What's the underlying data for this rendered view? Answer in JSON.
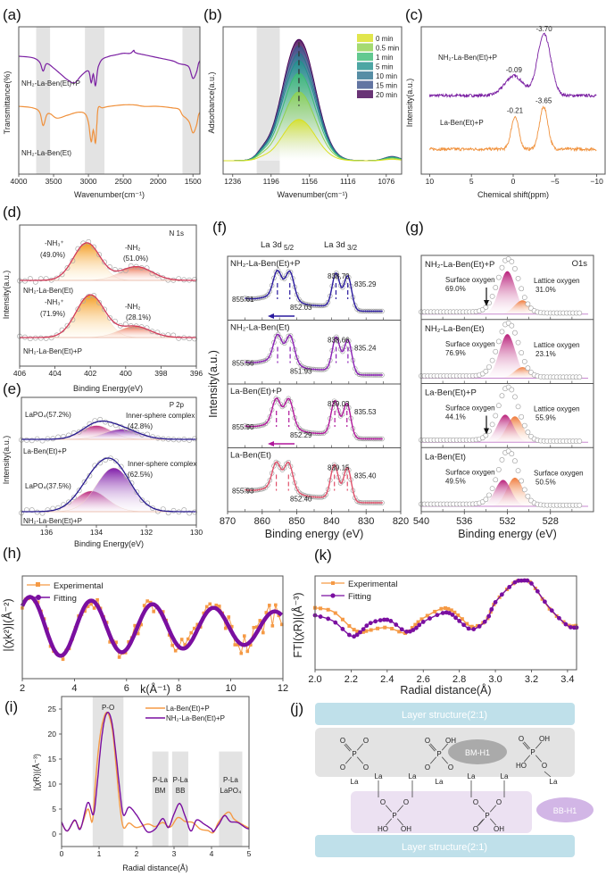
{
  "figure": {
    "panel_labels": [
      "(a)",
      "(b)",
      "(c)",
      "(d)",
      "(e)",
      "(f)",
      "(g)",
      "(h)",
      "(k)",
      "(i)",
      "(j)"
    ]
  },
  "chart_data": [
    {
      "id": "a",
      "type": "line",
      "title": "",
      "xlabel": "Wavenumber(cm⁻¹)",
      "ylabel": "Transmittance(%)",
      "xlim": [
        4000,
        1400
      ],
      "xticks": [
        "4000",
        "3500",
        "3000",
        "2500",
        "2000",
        "1500"
      ],
      "xtick_values": [
        4000,
        3500,
        3000,
        2500,
        2000,
        1500
      ],
      "shaded_regions": [
        [
          3750,
          3550
        ],
        [
          3050,
          2770
        ],
        [
          1650,
          1400
        ]
      ],
      "series": [
        {
          "name": "NH₂-La-Ben(Et)+P",
          "color": "#7a1fa2",
          "x": [
            4000,
            3800,
            3700,
            3650,
            3600,
            3500,
            3400,
            3300,
            3200,
            3100,
            3000,
            2960,
            2930,
            2900,
            2870,
            2850,
            2800,
            2700,
            2600,
            2500,
            2400,
            2350,
            2340,
            2300,
            2200,
            2000,
            1800,
            1700,
            1600,
            1550,
            1500,
            1450,
            1420,
            1400
          ],
          "y": [
            0.8,
            0.79,
            0.76,
            0.7,
            0.75,
            0.72,
            0.68,
            0.64,
            0.62,
            0.67,
            0.7,
            0.62,
            0.68,
            0.6,
            0.7,
            0.74,
            0.78,
            0.8,
            0.81,
            0.82,
            0.82,
            0.84,
            0.83,
            0.82,
            0.81,
            0.79,
            0.77,
            0.75,
            0.74,
            0.72,
            0.65,
            0.69,
            0.75,
            0.77
          ]
        },
        {
          "name": "NH₂-La-Ben(Et)",
          "color": "#f0913c",
          "x": [
            4000,
            3800,
            3700,
            3650,
            3600,
            3550,
            3450,
            3300,
            3150,
            3050,
            3000,
            2960,
            2930,
            2900,
            2880,
            2860,
            2800,
            2700,
            2500,
            2340,
            2200,
            2000,
            1800,
            1700,
            1650,
            1600,
            1550,
            1500,
            1450,
            1420,
            1400
          ],
          "y": [
            0.46,
            0.45,
            0.42,
            0.33,
            0.4,
            0.41,
            0.38,
            0.4,
            0.42,
            0.41,
            0.35,
            0.22,
            0.3,
            0.21,
            0.33,
            0.45,
            0.45,
            0.46,
            0.47,
            0.47,
            0.46,
            0.46,
            0.45,
            0.44,
            0.4,
            0.38,
            0.35,
            0.28,
            0.33,
            0.4,
            0.42
          ]
        }
      ]
    },
    {
      "id": "b",
      "type": "area",
      "xlabel": "Wavenumber(cm⁻¹)",
      "ylabel": "Adsorbance(a.u.)",
      "xlim": [
        1246,
        1060
      ],
      "xticks": [
        "1236",
        "1196",
        "1156",
        "1116",
        "1076"
      ],
      "xtick_values": [
        1236,
        1196,
        1156,
        1116,
        1076
      ],
      "shaded_regions": [
        [
          1211,
          1187
        ]
      ],
      "peak_center": 1167,
      "legend_position": "top-right",
      "series": [
        {
          "name": "0 min",
          "color": "#d9e021",
          "peak": 0.33
        },
        {
          "name": "0.5 min",
          "color": "#8fd14f",
          "peak": 0.55
        },
        {
          "name": "1 min",
          "color": "#3cbb75",
          "peak": 0.7
        },
        {
          "name": "5 min",
          "color": "#21908d",
          "peak": 0.8
        },
        {
          "name": "10 min",
          "color": "#2c728e",
          "peak": 0.86
        },
        {
          "name": "15 min",
          "color": "#3b528b",
          "peak": 0.92
        },
        {
          "name": "20 min",
          "color": "#440154",
          "peak": 0.97
        }
      ]
    },
    {
      "id": "c",
      "type": "line",
      "xlabel": "Chemical shift(ppm)",
      "ylabel": "Intensity(a.u.)",
      "xlim": [
        11,
        -11
      ],
      "xticks": [
        "10",
        "5",
        "0",
        "−5",
        "−10"
      ],
      "xtick_values": [
        10,
        5,
        0,
        -5,
        -10
      ],
      "series": [
        {
          "name": "NH₂-La-Ben(Et)+P",
          "color": "#7a1fa2",
          "peaks": [
            {
              "pos": -0.09,
              "label": "-0.09",
              "h": 0.2,
              "w": 1.1
            },
            {
              "pos": -3.7,
              "label": "-3.70",
              "h": 0.62,
              "w": 0.8
            }
          ]
        },
        {
          "name": "La-Ben(Et)+P",
          "color": "#f0913c",
          "peaks": [
            {
              "pos": -0.21,
              "label": "-0.21",
              "h": 0.33,
              "w": 0.45
            },
            {
              "pos": -3.65,
              "label": "-3.65",
              "h": 0.43,
              "w": 0.5
            }
          ]
        }
      ]
    },
    {
      "id": "d",
      "type": "area",
      "xlabel": "Binding Energy(eV)",
      "ylabel": "Intensity(a.u.)",
      "corner_label": "N 1s",
      "xlim": [
        406,
        396
      ],
      "xticks": [
        "406",
        "404",
        "402",
        "400",
        "398",
        "396"
      ],
      "xtick_values": [
        406,
        404,
        402,
        400,
        398,
        396
      ],
      "series": [
        {
          "name": "NH₂-La-Ben(Et)",
          "components": [
            {
              "label": "-NH₃⁺",
              "pct": "(49.0%)",
              "center": 402.2,
              "h": 0.6,
              "w": 0.75
            },
            {
              "label": "-NH₂",
              "pct": "(51.0%)",
              "center": 399.4,
              "h": 0.22,
              "w": 0.9
            }
          ]
        },
        {
          "name": "NH₂-La-Ben(Et)+P",
          "components": [
            {
              "label": "-NH₃⁺",
              "pct": "(71.9%)",
              "center": 402.0,
              "h": 0.68,
              "w": 0.8
            },
            {
              "label": "-NH₂",
              "pct": "(28.1%)",
              "center": 399.5,
              "h": 0.18,
              "w": 0.9
            }
          ]
        }
      ]
    },
    {
      "id": "e",
      "type": "area",
      "xlabel": "Binding Energy(eV)",
      "ylabel": "Intensity(a.u.)",
      "corner_label": "P 2p",
      "xlim": [
        137,
        130
      ],
      "xticks": [
        "136",
        "134",
        "132",
        "130"
      ],
      "xtick_values": [
        136,
        134,
        132,
        130
      ],
      "series": [
        {
          "name": "La-Ben(Et)+P",
          "components": [
            {
              "label": "LaPO₄(57.2%)",
              "center": 134.0,
              "h": 0.22,
              "w": 0.6
            },
            {
              "label": "Inner-sphere complex (42.8%)",
              "center": 133.0,
              "h": 0.16,
              "w": 0.7
            }
          ]
        },
        {
          "name": "NH₂-La-Ben(Et)+P",
          "components": [
            {
              "label": "LaPO₄(37.5%)",
              "center": 134.2,
              "h": 0.33,
              "w": 0.65
            },
            {
              "label": "Inner-sphere complex (62.5%)",
              "center": 133.3,
              "h": 0.7,
              "w": 0.7
            }
          ]
        }
      ]
    },
    {
      "id": "f",
      "type": "line",
      "xlabel": "Binding energy (eV)",
      "ylabel": "Intensity(a.u.)",
      "xlim": [
        870,
        820
      ],
      "xticks": [
        "870",
        "860",
        "850",
        "840",
        "830",
        "820"
      ],
      "xtick_values": [
        870,
        860,
        850,
        840,
        830,
        820
      ],
      "header_labels": [
        "La 3d₅₂",
        "La 3d₃₂"
      ],
      "series": [
        {
          "name": "NH₂-La-Ben(Et)+P",
          "color": "#2a1a9e",
          "peaks": [
            855.61,
            852.03,
            838.7,
            835.29
          ],
          "labels": [
            "855.61",
            "852.03",
            "838.70",
            "835.29"
          ],
          "arrow": true
        },
        {
          "name": "NH₂-La-Ben(Et)",
          "color": "#8a1fb5",
          "peaks": [
            855.56,
            851.93,
            838.66,
            835.24
          ],
          "labels": [
            "855.56",
            "851.93",
            "838.66",
            "835.24"
          ],
          "arrow": false
        },
        {
          "name": "La-Ben(Et)+P",
          "color": "#b0179b",
          "peaks": [
            855.9,
            852.29,
            839.03,
            835.53
          ],
          "labels": [
            "855.90",
            "852.29",
            "839.03",
            "835.53"
          ],
          "arrow": true
        },
        {
          "name": "La-Ben(Et)",
          "color": "#e0506a",
          "peaks": [
            855.93,
            852.4,
            839.15,
            835.4
          ],
          "labels": [
            "855.93",
            "852.40",
            "839.15",
            "835.40"
          ],
          "arrow": false
        }
      ]
    },
    {
      "id": "g",
      "type": "area",
      "xlabel": "Binding energy (eV)",
      "ylabel": "",
      "corner_label": "O1s",
      "xlim": [
        540,
        524
      ],
      "xticks": [
        "540",
        "536",
        "532",
        "528"
      ],
      "xtick_values": [
        540,
        536,
        532,
        528
      ],
      "series": [
        {
          "name": "NH₂-La-Ben(Et)+P",
          "left_label": "Surface oxygen",
          "left_pct": "69.0%",
          "right_label": "Lattice oxygen",
          "right_pct": "31.0%",
          "arrow": true,
          "c1": 532.0,
          "h1": 0.78,
          "c2": 530.6,
          "h2": 0.25
        },
        {
          "name": "NH₂-La-Ben(Et)",
          "left_label": "Surface oxygen",
          "left_pct": "76.9%",
          "right_label": "Lattice oxygen",
          "right_pct": "23.1%",
          "arrow": false,
          "c1": 532.0,
          "h1": 0.8,
          "c2": 530.6,
          "h2": 0.2
        },
        {
          "name": "La-Ben(Et)+P",
          "left_label": "Surface oxygen",
          "left_pct": "44.1%",
          "right_label": "Lattice oxygen",
          "right_pct": "55.9%",
          "arrow": true,
          "c1": 532.2,
          "h1": 0.5,
          "c2": 531.3,
          "h2": 0.47
        },
        {
          "name": "La-Ben(Et)",
          "left_label": "Surface oxygen",
          "left_pct": "49.5%",
          "right_label": "Surface oxygen",
          "right_pct": "50.5%",
          "arrow": false,
          "c1": 532.4,
          "h1": 0.48,
          "c2": 531.3,
          "h2": 0.52
        }
      ]
    },
    {
      "id": "h",
      "type": "line",
      "xlabel": "k(Å⁻¹)",
      "ylabel": "|(χk²)|(Å⁻²)",
      "xlim": [
        2,
        12
      ],
      "xticks": [
        "2",
        "4",
        "6",
        "8",
        "10",
        "12"
      ],
      "xtick_values": [
        2,
        4,
        6,
        8,
        10,
        12
      ],
      "legend_position": "top-left",
      "series": [
        {
          "name": "Experimental",
          "color": "#f59a45"
        },
        {
          "name": "Fitting",
          "color": "#7a0fa0"
        }
      ]
    },
    {
      "id": "k",
      "type": "line",
      "xlabel": "Radial distance(Å)",
      "ylabel": "FT|(χR)|(Å⁻³)",
      "xlim": [
        2.0,
        3.45
      ],
      "xticks": [
        "2.0",
        "2.2",
        "2.4",
        "2.6",
        "2.8",
        "3.0",
        "3.2",
        "3.4"
      ],
      "xtick_values": [
        2.0,
        2.2,
        2.4,
        2.6,
        2.8,
        3.0,
        3.2,
        3.4
      ],
      "legend_position": "top-left",
      "series": [
        {
          "name": "Experimental",
          "color": "#f59a45",
          "x": [
            2.0,
            2.1,
            2.2,
            2.25,
            2.3,
            2.4,
            2.5,
            2.55,
            2.6,
            2.7,
            2.75,
            2.8,
            2.87,
            2.95,
            3.0,
            3.1,
            3.15,
            3.2,
            3.3,
            3.4,
            3.45
          ],
          "y": [
            0.66,
            0.62,
            0.45,
            0.4,
            0.42,
            0.45,
            0.39,
            0.47,
            0.55,
            0.65,
            0.64,
            0.57,
            0.46,
            0.53,
            0.72,
            0.92,
            0.95,
            0.92,
            0.65,
            0.48,
            0.47
          ]
        },
        {
          "name": "Fitting",
          "color": "#7a0fa0",
          "x": [
            2.0,
            2.1,
            2.2,
            2.25,
            2.3,
            2.37,
            2.42,
            2.5,
            2.55,
            2.6,
            2.7,
            2.75,
            2.8,
            2.87,
            2.95,
            3.0,
            3.1,
            3.15,
            3.2,
            3.3,
            3.4,
            3.45
          ],
          "y": [
            0.58,
            0.52,
            0.36,
            0.4,
            0.49,
            0.53,
            0.52,
            0.41,
            0.43,
            0.51,
            0.6,
            0.6,
            0.52,
            0.43,
            0.53,
            0.72,
            0.92,
            0.95,
            0.92,
            0.66,
            0.47,
            0.45
          ]
        }
      ]
    },
    {
      "id": "i",
      "type": "line",
      "xlabel": "Radial distance(Å)",
      "ylabel": "|(χR)|(Å⁻³)",
      "xlim": [
        0,
        5
      ],
      "ylim": [
        -2.5,
        27.5
      ],
      "xticks": [
        "0",
        "1",
        "2",
        "3",
        "4",
        "5"
      ],
      "xtick_values": [
        0,
        1,
        2,
        3,
        4,
        5
      ],
      "yticks": [
        "0",
        "5",
        "10",
        "15",
        "20",
        "25"
      ],
      "ytick_values": [
        0,
        5,
        10,
        15,
        20,
        25
      ],
      "legend_position": "top-right",
      "shaded_regions": [
        {
          "x": [
            0.83,
            1.65
          ],
          "top": 27.5,
          "label": "P-O"
        },
        {
          "x": [
            2.42,
            2.85
          ],
          "top": 16.5,
          "label": "P-La BM"
        },
        {
          "x": [
            2.95,
            3.38
          ],
          "top": 16.5,
          "label": "P-La BB"
        },
        {
          "x": [
            4.2,
            4.82
          ],
          "top": 16.5,
          "label": "P-La LaPO₄"
        }
      ],
      "series": [
        {
          "name": "La-Ben(Et)+P",
          "color": "#f59a45",
          "x": [
            0,
            0.15,
            0.35,
            0.5,
            0.7,
            0.82,
            0.9,
            1.0,
            1.1,
            1.22,
            1.35,
            1.45,
            1.55,
            1.65,
            1.8,
            2.0,
            2.3,
            2.5,
            2.7,
            2.9,
            3.1,
            3.3,
            3.5,
            3.7,
            3.9,
            4.05,
            4.2,
            4.45,
            4.6,
            4.8,
            5.0
          ],
          "y": [
            2.3,
            0.6,
            2.7,
            1.2,
            5.0,
            2.5,
            10.0,
            18.0,
            22.5,
            24.3,
            21.0,
            14.0,
            6.0,
            1.3,
            2.2,
            1.3,
            2.0,
            1.5,
            2.3,
            1.4,
            3.3,
            2.5,
            2.3,
            1.0,
            0.7,
            0.3,
            2.5,
            4.4,
            3.0,
            2.0,
            1.2
          ]
        },
        {
          "name": "NH₂-La-Ben(Et)+P",
          "color": "#7a0fa0",
          "x": [
            0,
            0.15,
            0.35,
            0.5,
            0.7,
            0.85,
            0.95,
            1.05,
            1.15,
            1.25,
            1.35,
            1.45,
            1.55,
            1.65,
            1.8,
            2.0,
            2.15,
            2.3,
            2.5,
            2.7,
            2.85,
            3.0,
            3.15,
            3.3,
            3.45,
            3.6,
            3.8,
            4.0,
            4.05,
            4.2,
            4.35,
            4.5,
            4.7,
            4.9,
            5.0
          ],
          "y": [
            2.4,
            0.6,
            2.8,
            1.0,
            6.3,
            3.9,
            10.0,
            18.0,
            23.0,
            24.3,
            22.0,
            16.0,
            9.0,
            3.8,
            5.4,
            3.8,
            2.0,
            0.4,
            1.0,
            3.1,
            1.3,
            4.0,
            6.1,
            3.5,
            0.6,
            2.8,
            2.0,
            1.0,
            0.5,
            2.0,
            3.7,
            2.5,
            2.3,
            1.3,
            1.0
          ]
        }
      ]
    }
  ],
  "scheme_j": {
    "layer_label": "Layer structure(2:1)",
    "bm_label": "BM-H1",
    "bb_label": "BB-H1",
    "atoms": {
      "O": "O",
      "P": "P",
      "OH": "OH",
      "HO": "HO",
      "La": "La"
    }
  }
}
